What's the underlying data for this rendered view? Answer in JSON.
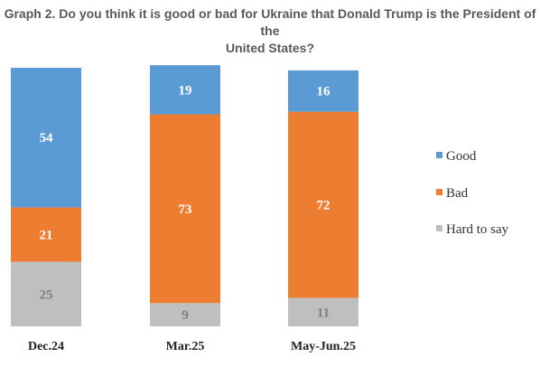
{
  "chart_data": {
    "type": "bar",
    "stacked": true,
    "title_line1": "Graph 2. Do you think it is good or bad for Ukraine that Donald Trump is the President of the",
    "title_line2": "United States?",
    "categories": [
      "Dec.24",
      "Mar.25",
      "May-Jun.25"
    ],
    "series": [
      {
        "name": "Good",
        "values": [
          54,
          19,
          16
        ],
        "color": "#5B9BD5",
        "label_color": "#ffffff"
      },
      {
        "name": "Bad",
        "values": [
          21,
          73,
          72
        ],
        "color": "#ED7D31",
        "label_color": "#ffffff"
      },
      {
        "name": "Hard to say",
        "values": [
          25,
          9,
          11
        ],
        "color": "#BFBFBF",
        "label_color": "#7f7f7f"
      }
    ],
    "ylim": [
      0,
      100
    ],
    "legend_position": "right"
  }
}
